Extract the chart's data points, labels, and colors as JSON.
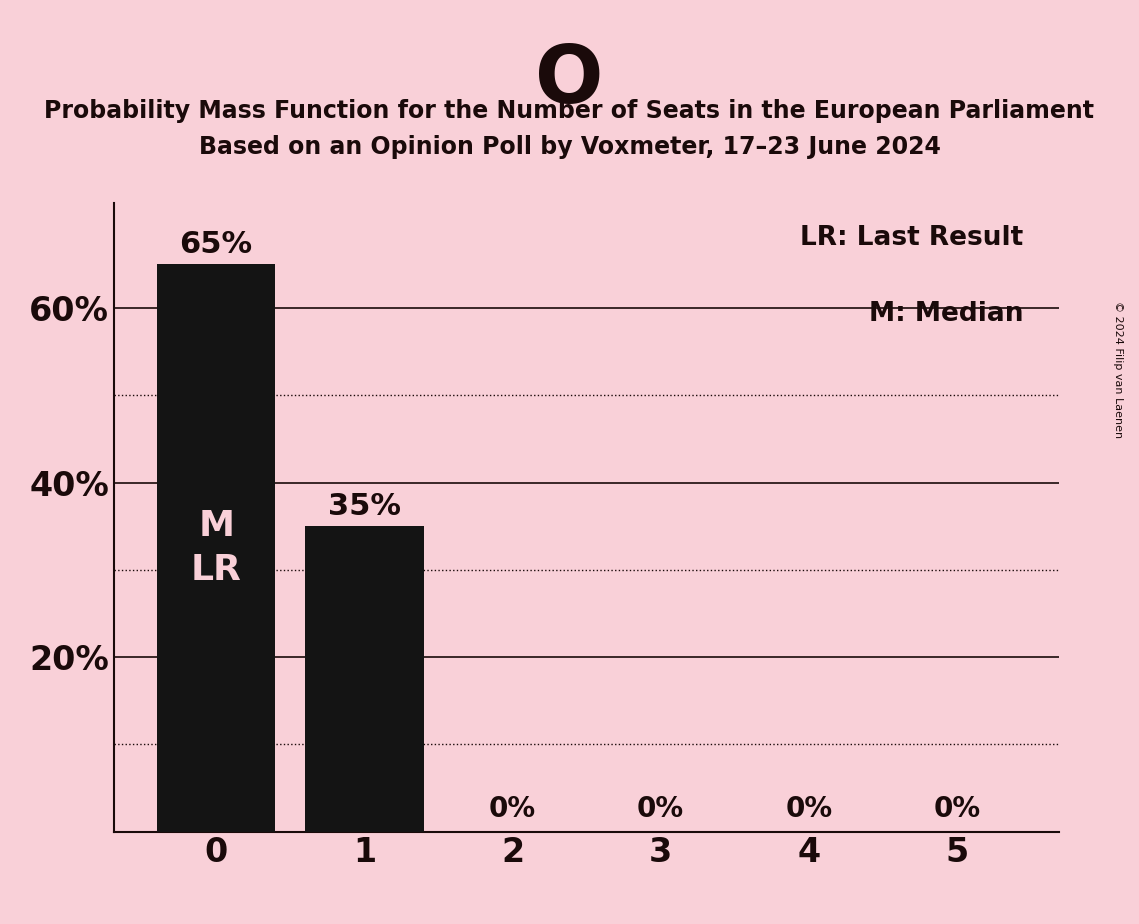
{
  "title_letter": "O",
  "subtitle_line1": "Probability Mass Function for the Number of Seats in the European Parliament",
  "subtitle_line2": "Based on an Opinion Poll by Voxmeter, 17–23 June 2024",
  "categories": [
    0,
    1,
    2,
    3,
    4,
    5
  ],
  "values": [
    0.65,
    0.35,
    0.0,
    0.0,
    0.0,
    0.0
  ],
  "bar_color": "#141414",
  "background_color": "#f9d0d8",
  "text_color": "#1a0a0a",
  "bar_label_color_light": "#f9d0d8",
  "legend_lr": "LR: Last Result",
  "legend_m": "M: Median",
  "copyright_text": "© 2024 Filip van Laenen",
  "ylim": [
    0,
    0.72
  ],
  "solid_grid": [
    0.2,
    0.4,
    0.6
  ],
  "dotted_grid_values": [
    0.1,
    0.3,
    0.5
  ],
  "figsize": [
    11.39,
    9.24
  ],
  "dpi": 100
}
